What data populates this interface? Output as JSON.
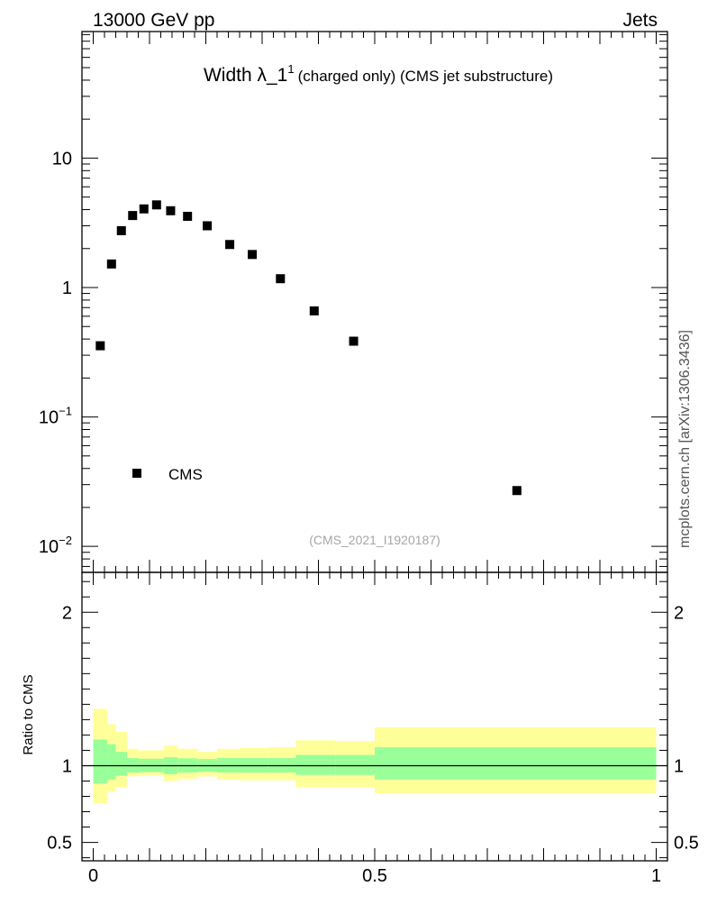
{
  "header": {
    "energy_label": "13000 GeV pp",
    "process_label": "Jets"
  },
  "side_label": "mcplots.cern.ch [arXiv:1306.3436]",
  "chart_data": [
    {
      "type": "scatter",
      "panel": "main",
      "title_main": "Width λ_1",
      "title_sup": "1",
      "title_rest": "(charged only) (CMS jet substructure)",
      "analysis_id": "(CMS_2021_I1920187)",
      "yscale": "log",
      "xlim": [
        -0.02,
        1.02
      ],
      "ylim": [
        0.0063,
        95
      ],
      "legend": {
        "position": "lower-left",
        "entries": [
          "CMS"
        ]
      },
      "y_ticks": [
        {
          "value": 10,
          "base": "10",
          "exp": ""
        },
        {
          "value": 1,
          "base": "1",
          "exp": ""
        },
        {
          "value": 0.1,
          "base": "10",
          "exp": "−1"
        },
        {
          "value": 0.01,
          "base": "10",
          "exp": "−2"
        }
      ],
      "series": [
        {
          "name": "CMS",
          "x": [
            0.0125,
            0.0325,
            0.05,
            0.07,
            0.09,
            0.1125,
            0.1375,
            0.1675,
            0.2025,
            0.2425,
            0.2825,
            0.3325,
            0.3925,
            0.4625,
            0.7525
          ],
          "y": [
            0.355,
            1.52,
            2.75,
            3.6,
            4.05,
            4.35,
            3.92,
            3.55,
            3.0,
            2.15,
            1.8,
            1.17,
            0.66,
            0.385,
            0.027
          ]
        }
      ]
    },
    {
      "type": "area",
      "panel": "ratio",
      "ylabel": "Ratio to CMS",
      "xlim": [
        -0.02,
        1.02
      ],
      "ylim": [
        0.38,
        2.26
      ],
      "y_ticks": [
        "2",
        "1",
        "0.5"
      ],
      "x_ticks": [
        "0",
        "0.5",
        "1"
      ],
      "reference_line": 1.0,
      "bins": [
        {
          "x0": 0.0,
          "x1": 0.025,
          "inner_lo": 0.885,
          "inner_hi": 1.17,
          "outer_lo": 0.755,
          "outer_hi": 1.37
        },
        {
          "x0": 0.025,
          "x1": 0.04,
          "inner_lo": 0.91,
          "inner_hi": 1.14,
          "outer_lo": 0.83,
          "outer_hi": 1.27
        },
        {
          "x0": 0.04,
          "x1": 0.06,
          "inner_lo": 0.935,
          "inner_hi": 1.09,
          "outer_lo": 0.86,
          "outer_hi": 1.22
        },
        {
          "x0": 0.06,
          "x1": 0.08,
          "inner_lo": 0.955,
          "inner_hi": 1.05,
          "outer_lo": 0.93,
          "outer_hi": 1.11
        },
        {
          "x0": 0.08,
          "x1": 0.125,
          "inner_lo": 0.958,
          "inner_hi": 1.045,
          "outer_lo": 0.935,
          "outer_hi": 1.1
        },
        {
          "x0": 0.125,
          "x1": 0.15,
          "inner_lo": 0.945,
          "inner_hi": 1.055,
          "outer_lo": 0.9,
          "outer_hi": 1.13
        },
        {
          "x0": 0.15,
          "x1": 0.185,
          "inner_lo": 0.955,
          "inner_hi": 1.048,
          "outer_lo": 0.915,
          "outer_hi": 1.11
        },
        {
          "x0": 0.185,
          "x1": 0.22,
          "inner_lo": 0.96,
          "inner_hi": 1.043,
          "outer_lo": 0.93,
          "outer_hi": 1.09
        },
        {
          "x0": 0.22,
          "x1": 0.26,
          "inner_lo": 0.955,
          "inner_hi": 1.05,
          "outer_lo": 0.91,
          "outer_hi": 1.11
        },
        {
          "x0": 0.26,
          "x1": 0.31,
          "inner_lo": 0.955,
          "inner_hi": 1.05,
          "outer_lo": 0.905,
          "outer_hi": 1.115
        },
        {
          "x0": 0.31,
          "x1": 0.36,
          "inner_lo": 0.955,
          "inner_hi": 1.05,
          "outer_lo": 0.905,
          "outer_hi": 1.12
        },
        {
          "x0": 0.36,
          "x1": 0.43,
          "inner_lo": 0.94,
          "inner_hi": 1.07,
          "outer_lo": 0.86,
          "outer_hi": 1.165
        },
        {
          "x0": 0.43,
          "x1": 0.5,
          "inner_lo": 0.94,
          "inner_hi": 1.07,
          "outer_lo": 0.86,
          "outer_hi": 1.16
        },
        {
          "x0": 0.5,
          "x1": 1.0,
          "inner_lo": 0.91,
          "inner_hi": 1.12,
          "outer_lo": 0.82,
          "outer_hi": 1.25
        }
      ],
      "colors": {
        "inner": "#99ff99",
        "outer": "#ffff99",
        "line": "#000000"
      }
    }
  ]
}
